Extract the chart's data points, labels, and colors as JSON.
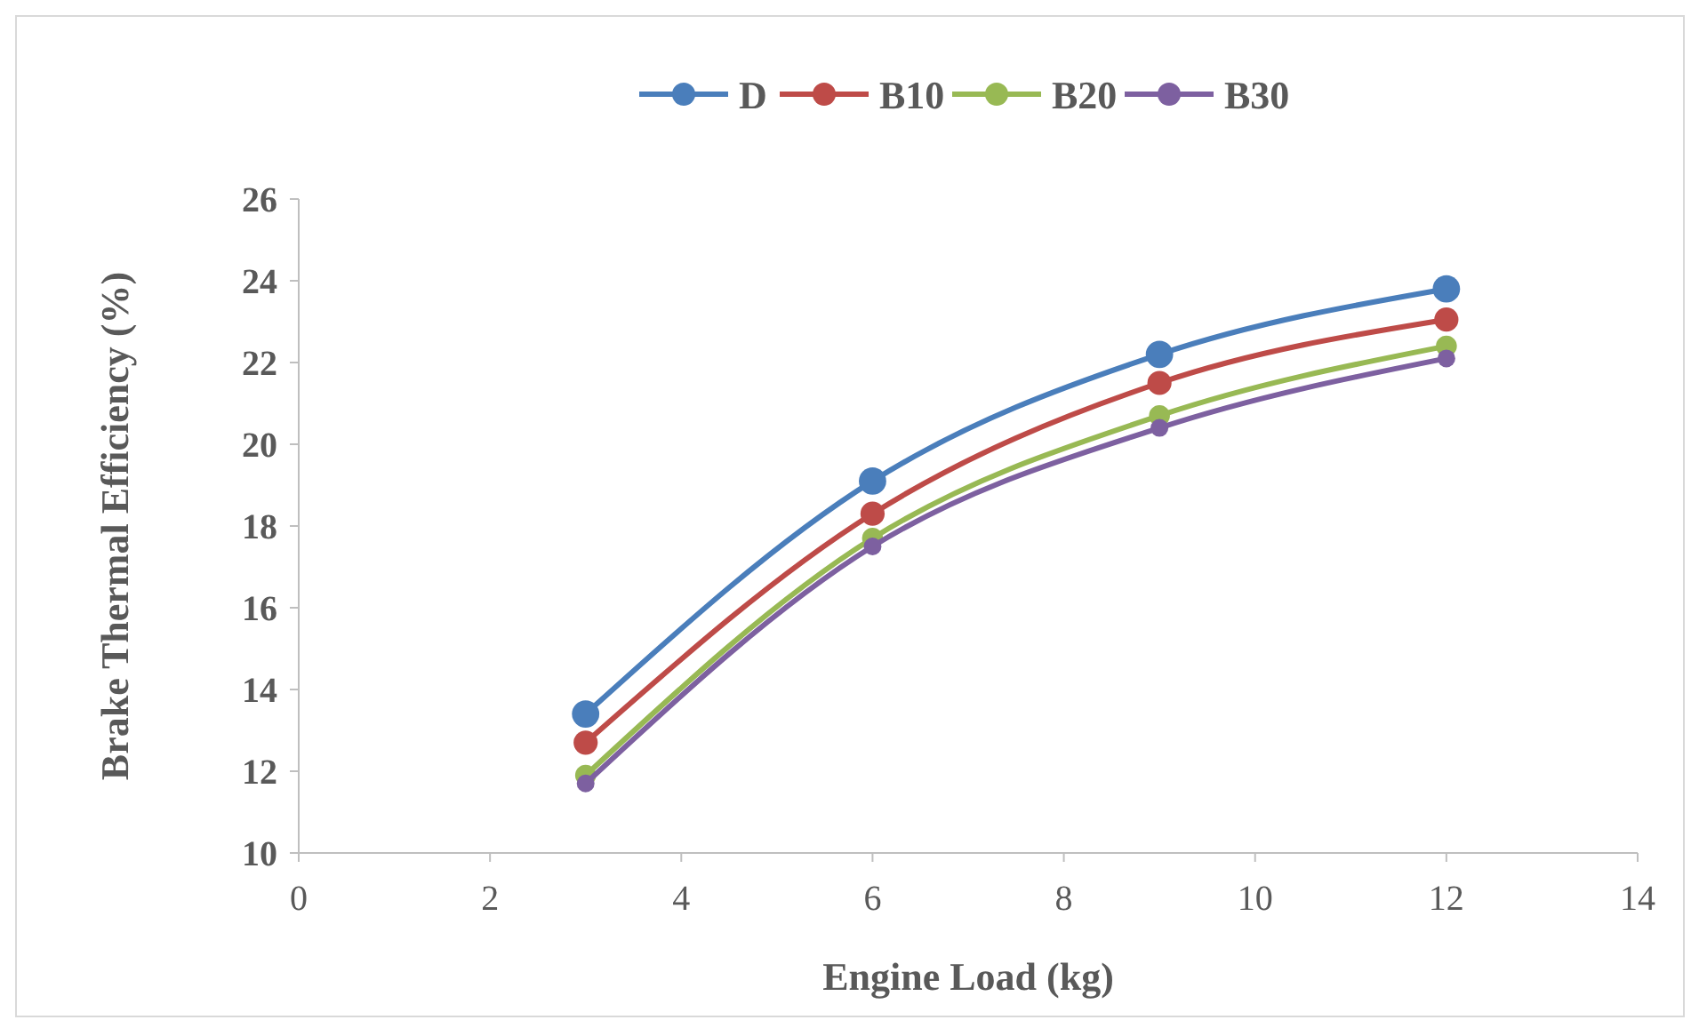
{
  "chart_data": {
    "type": "line",
    "xlabel": "Engine Load (kg)",
    "ylabel": "Brake Thermal Efficiency (%)",
    "x": [
      3,
      6,
      9,
      12
    ],
    "series": [
      {
        "name": "D",
        "color": "#4a7ebb",
        "values": [
          13.4,
          19.1,
          22.2,
          23.8
        ]
      },
      {
        "name": "B10",
        "color": "#be4b48",
        "values": [
          12.7,
          18.3,
          21.5,
          23.05
        ]
      },
      {
        "name": "B20",
        "color": "#98b954",
        "values": [
          11.9,
          17.7,
          20.7,
          22.4
        ]
      },
      {
        "name": "B30",
        "color": "#7d60a0",
        "values": [
          11.7,
          17.5,
          20.4,
          22.1
        ]
      }
    ],
    "xlim": [
      0,
      14
    ],
    "xticks": [
      0,
      2,
      4,
      6,
      8,
      10,
      12,
      14
    ],
    "ylim": [
      10,
      26
    ],
    "yticks": [
      10,
      12,
      14,
      16,
      18,
      20,
      22,
      24,
      26
    ],
    "legend": "top",
    "marker": "circle",
    "line_style": "solid",
    "grid": false
  }
}
